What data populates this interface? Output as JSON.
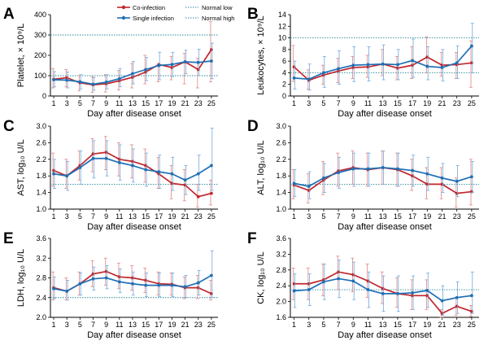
{
  "figure": {
    "legend": {
      "coinfection": "Co-infection",
      "single": "Single infection",
      "normal_low": "Normal low",
      "normal_high": "Normal high"
    },
    "colors": {
      "coinfection": "#c0272d",
      "single": "#1f6fb5",
      "normal_line": "#2a8a9a",
      "errbar_coinfection": "#e08585",
      "errbar_single": "#6fa8dc"
    }
  },
  "chart_data": [
    {
      "panel": "A",
      "type": "line",
      "xlabel": "Day after disease onset",
      "ylabel": "Platelet, × 10⁹/L",
      "x": [
        1,
        3,
        5,
        7,
        9,
        11,
        13,
        15,
        17,
        19,
        21,
        23,
        25
      ],
      "ylim": [
        0,
        400
      ],
      "yticks": [
        0,
        100,
        200,
        300,
        400
      ],
      "ytick_labels": [
        "0",
        "100",
        "200",
        "300",
        "400"
      ],
      "normal_low": 100,
      "normal_high": 300,
      "series": [
        {
          "name": "Co-infection",
          "values": [
            82,
            90,
            65,
            55,
            60,
            75,
            92,
            118,
            155,
            140,
            168,
            130,
            228
          ],
          "err_lo": [
            40,
            45,
            25,
            18,
            20,
            30,
            40,
            60,
            70,
            80,
            60,
            40,
            70
          ],
          "err_hi": [
            135,
            130,
            100,
            95,
            105,
            125,
            160,
            200,
            150,
            195,
            210,
            185,
            365
          ]
        },
        {
          "name": "Single infection",
          "values": [
            80,
            78,
            70,
            58,
            68,
            85,
            110,
            130,
            150,
            155,
            168,
            165,
            172
          ],
          "err_lo": [
            45,
            40,
            35,
            28,
            35,
            45,
            60,
            75,
            80,
            95,
            110,
            100,
            85
          ],
          "err_hi": [
            120,
            118,
            105,
            90,
            105,
            135,
            170,
            190,
            215,
            215,
            225,
            230,
            260
          ]
        }
      ]
    },
    {
      "panel": "B",
      "type": "line",
      "xlabel": "Day after disease onset",
      "ylabel": "Leukocytes, × 10⁹/L",
      "x": [
        1,
        3,
        5,
        7,
        9,
        11,
        13,
        15,
        17,
        19,
        21,
        23,
        25
      ],
      "ylim": [
        0,
        14
      ],
      "yticks": [
        0,
        2,
        4,
        6,
        8,
        10,
        12,
        14
      ],
      "ytick_labels": [
        "0",
        "2",
        "4",
        "6",
        "8",
        "10",
        "12",
        "14"
      ],
      "normal_low": 4,
      "normal_high": 10,
      "series": [
        {
          "name": "Co-infection",
          "values": [
            5.0,
            2.7,
            3.6,
            4.3,
            4.9,
            5.0,
            5.5,
            4.8,
            5.3,
            6.7,
            5.3,
            5.4,
            5.7
          ],
          "err_lo": [
            2.5,
            1.2,
            2.0,
            2.3,
            3.0,
            3.2,
            3.5,
            2.8,
            3.0,
            4.0,
            3.4,
            3.0,
            1.5
          ],
          "err_hi": [
            8.7,
            4.5,
            5.3,
            6.5,
            6.8,
            7.0,
            8.0,
            6.8,
            8.5,
            10.2,
            7.5,
            7.5,
            9.5
          ]
        },
        {
          "name": "Single infection",
          "values": [
            3.1,
            2.9,
            4.0,
            4.7,
            5.3,
            5.4,
            5.5,
            5.4,
            6.1,
            5.1,
            4.9,
            5.7,
            8.6
          ],
          "err_lo": [
            1.2,
            1.0,
            1.5,
            2.0,
            2.5,
            2.6,
            2.8,
            2.8,
            3.2,
            2.8,
            2.6,
            3.0,
            4.0
          ],
          "err_hi": [
            6.0,
            5.5,
            6.8,
            7.8,
            8.5,
            8.5,
            8.8,
            8.0,
            9.8,
            8.5,
            8.0,
            8.6,
            12.5
          ]
        }
      ]
    },
    {
      "panel": "C",
      "type": "line",
      "xlabel": "Day after disease onset",
      "ylabel": "AST, log₁₀ U/L",
      "x": [
        1,
        3,
        5,
        7,
        9,
        11,
        13,
        15,
        17,
        19,
        21,
        23,
        25
      ],
      "ylim": [
        1.0,
        3.0
      ],
      "yticks": [
        1.0,
        1.4,
        1.8,
        2.2,
        2.6,
        3.0
      ],
      "ytick_labels": [
        "1.0",
        "1.4",
        "1.8",
        "2.2",
        "2.6",
        "3.0"
      ],
      "normal_low": 1.6,
      "normal_high": null,
      "series": [
        {
          "name": "Co-infection",
          "values": [
            1.93,
            1.8,
            2.05,
            2.33,
            2.37,
            2.2,
            2.15,
            2.05,
            1.85,
            1.62,
            1.58,
            1.3,
            1.38
          ],
          "err_lo": [
            1.55,
            1.5,
            1.7,
            1.9,
            1.95,
            1.8,
            1.75,
            1.65,
            1.5,
            1.25,
            1.2,
            1.05,
            1.1
          ],
          "err_hi": [
            2.35,
            2.2,
            2.4,
            2.7,
            2.75,
            2.6,
            2.55,
            2.45,
            2.25,
            2.05,
            1.95,
            1.6,
            1.7
          ]
        },
        {
          "name": "Single infection",
          "values": [
            1.85,
            1.8,
            2.0,
            2.22,
            2.22,
            2.12,
            2.05,
            1.95,
            1.9,
            1.85,
            1.7,
            1.85,
            2.05
          ],
          "err_lo": [
            1.5,
            1.45,
            1.6,
            1.75,
            1.8,
            1.7,
            1.65,
            1.55,
            1.5,
            1.45,
            1.35,
            1.45,
            1.45
          ],
          "err_hi": [
            2.2,
            2.15,
            2.4,
            2.65,
            2.65,
            2.55,
            2.45,
            2.35,
            2.3,
            2.25,
            2.05,
            2.3,
            2.95
          ]
        }
      ]
    },
    {
      "panel": "D",
      "type": "line",
      "xlabel": "Day after disease onset",
      "ylabel": "ALT, log₁₀ U/L",
      "x": [
        1,
        3,
        5,
        7,
        9,
        11,
        13,
        15,
        17,
        19,
        21,
        23,
        25
      ],
      "ylim": [
        1.0,
        3.0
      ],
      "yticks": [
        1.0,
        1.4,
        1.8,
        2.2,
        2.6,
        3.0
      ],
      "ytick_labels": [
        "1.0",
        "1.4",
        "1.8",
        "2.2",
        "2.6",
        "3.0"
      ],
      "normal_low": 1.6,
      "normal_high": null,
      "series": [
        {
          "name": "Co-infection",
          "values": [
            1.58,
            1.45,
            1.7,
            1.92,
            2.0,
            1.95,
            2.0,
            1.95,
            1.8,
            1.6,
            1.6,
            1.38,
            1.42
          ],
          "err_lo": [
            1.25,
            1.15,
            1.35,
            1.55,
            1.6,
            1.55,
            1.6,
            1.55,
            1.45,
            1.25,
            1.25,
            1.05,
            1.1
          ],
          "err_hi": [
            1.95,
            1.85,
            2.15,
            2.35,
            2.4,
            2.35,
            2.4,
            2.35,
            2.2,
            2.0,
            2.0,
            1.75,
            2.2
          ]
        },
        {
          "name": "Single infection",
          "values": [
            1.62,
            1.55,
            1.75,
            1.88,
            1.97,
            1.97,
            2.0,
            1.97,
            1.93,
            1.85,
            1.75,
            1.67,
            1.78
          ],
          "err_lo": [
            1.3,
            1.25,
            1.4,
            1.5,
            1.55,
            1.55,
            1.6,
            1.55,
            1.55,
            1.45,
            1.4,
            1.3,
            1.4
          ],
          "err_hi": [
            1.95,
            1.9,
            2.1,
            2.25,
            2.35,
            2.35,
            2.4,
            2.35,
            2.3,
            2.25,
            2.1,
            2.05,
            2.15
          ]
        }
      ]
    },
    {
      "panel": "E",
      "type": "line",
      "xlabel": "Day after disease onset",
      "ylabel": "LDH, log₁₀ U/L",
      "x": [
        1,
        3,
        5,
        7,
        9,
        11,
        13,
        15,
        17,
        19,
        21,
        23,
        25
      ],
      "ylim": [
        2.0,
        3.6
      ],
      "yticks": [
        2.0,
        2.4,
        2.8,
        3.2,
        3.6
      ],
      "ytick_labels": [
        "2.0",
        "2.4",
        "2.8",
        "3.2",
        "3.6"
      ],
      "normal_low": 2.4,
      "normal_high": null,
      "series": [
        {
          "name": "Co-infection",
          "values": [
            2.6,
            2.53,
            2.68,
            2.88,
            2.93,
            2.82,
            2.8,
            2.75,
            2.68,
            2.67,
            2.6,
            2.6,
            2.48
          ],
          "err_lo": [
            2.35,
            2.35,
            2.45,
            2.62,
            2.65,
            2.58,
            2.55,
            2.5,
            2.45,
            2.45,
            2.38,
            2.38,
            2.35
          ],
          "err_hi": [
            2.92,
            2.8,
            2.92,
            3.15,
            3.2,
            3.1,
            3.05,
            3.0,
            2.92,
            2.9,
            2.82,
            2.85,
            2.75
          ]
        },
        {
          "name": "Single infection",
          "values": [
            2.58,
            2.53,
            2.68,
            2.78,
            2.8,
            2.72,
            2.68,
            2.65,
            2.65,
            2.65,
            2.62,
            2.7,
            2.85
          ],
          "err_lo": [
            2.38,
            2.35,
            2.45,
            2.55,
            2.58,
            2.5,
            2.45,
            2.42,
            2.42,
            2.42,
            2.4,
            2.45,
            2.4
          ],
          "err_hi": [
            2.82,
            2.75,
            2.9,
            3.02,
            3.05,
            2.98,
            2.92,
            2.9,
            2.9,
            2.9,
            2.85,
            2.95,
            3.35
          ]
        }
      ]
    },
    {
      "panel": "F",
      "type": "line",
      "xlabel": "Day after disease onset",
      "ylabel": "CK, log₁₀ U/L",
      "x": [
        1,
        3,
        5,
        7,
        9,
        11,
        13,
        15,
        17,
        19,
        21,
        23,
        25
      ],
      "ylim": [
        1.6,
        3.6
      ],
      "yticks": [
        1.6,
        2.0,
        2.4,
        2.8,
        3.2,
        3.6
      ],
      "ytick_labels": [
        "1.6",
        "2.0",
        "2.4",
        "2.8",
        "3.2",
        "3.6"
      ],
      "normal_low": 2.3,
      "normal_high": null,
      "series": [
        {
          "name": "Co-infection",
          "values": [
            2.45,
            2.45,
            2.55,
            2.75,
            2.68,
            2.52,
            2.33,
            2.2,
            2.15,
            2.15,
            1.7,
            1.88,
            1.75
          ],
          "err_lo": [
            2.05,
            2.05,
            2.15,
            2.3,
            2.25,
            2.1,
            1.95,
            1.85,
            1.8,
            1.8,
            1.6,
            1.65,
            1.62
          ],
          "err_hi": [
            2.85,
            2.85,
            2.95,
            3.15,
            3.1,
            2.95,
            2.75,
            2.6,
            2.55,
            2.55,
            1.8,
            2.1,
            1.9
          ]
        },
        {
          "name": "Single infection",
          "values": [
            2.27,
            2.3,
            2.5,
            2.58,
            2.52,
            2.3,
            2.2,
            2.2,
            2.22,
            2.28,
            2.02,
            2.1,
            2.15
          ],
          "err_lo": [
            1.85,
            1.9,
            2.05,
            2.1,
            2.05,
            1.85,
            1.75,
            1.75,
            1.8,
            1.85,
            1.65,
            1.7,
            1.7
          ],
          "err_hi": [
            2.7,
            2.7,
            2.95,
            3.05,
            3.0,
            2.75,
            2.65,
            2.65,
            2.65,
            2.72,
            2.4,
            2.5,
            2.75
          ]
        }
      ]
    }
  ]
}
